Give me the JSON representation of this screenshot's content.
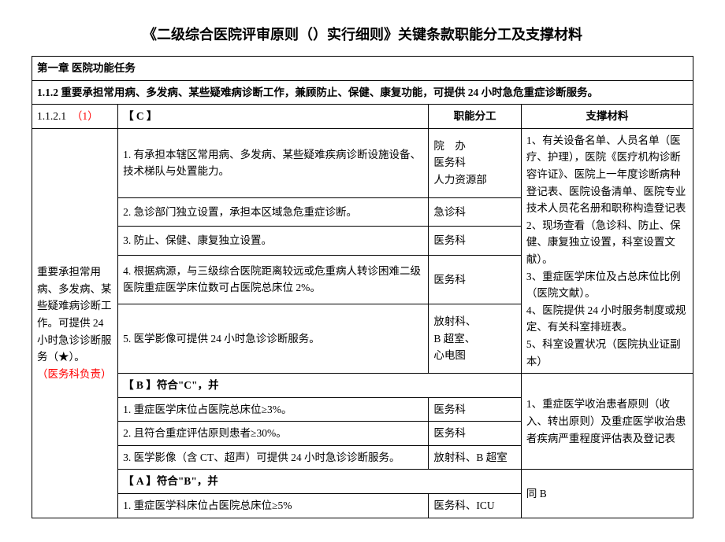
{
  "title": "《二级综合医院评审原则（）实行细则》关键条款职能分工及支撑材料",
  "chapter": "第一章 医院功能任务",
  "section": "1.1.2 重要承担常用病、多发病、某些疑难病诊断工作，兼顾防止、保健、康复功能，可提供 24 小时急危重症诊断服务。",
  "row_header": {
    "num": "1.1.2.1",
    "mark": "（1）",
    "c": "【 C 】",
    "col_div": "职能分工",
    "col_mat": "支撑材料"
  },
  "left_desc_a": "重要承担常用病、多发病、某些疑难病诊断工作。可提供 24 小时急诊诊断服务（★）。",
  "left_desc_b": "（医务科负责）",
  "rows_c": [
    {
      "item": "1. 有承担本辖区常用病、多发病、某些疑难疾病诊断设施设备、技术梯队与处置能力。",
      "div": "院　办\n医务科\n人力资源部"
    },
    {
      "item": "2. 急诊部门独立设置，承担本区域急危重症诊断。",
      "div": "急诊科"
    },
    {
      "item": "3. 防止、保健、康复独立设置。",
      "div": "医务科"
    },
    {
      "item": "4. 根据病源，与三级综合医院距离较远或危重病人转诊困难二级医院重症医学床位数可占医院总床位 2%。",
      "div": "医务科"
    },
    {
      "item": "5. 医学影像可提供 24 小时急诊诊断服务。",
      "div": "放射科、\nB 超室、\n心电图"
    }
  ],
  "materials_c": "1、有关设备名单、人员名单（医疗、护理），医院《医疗机构诊断容许证》、医院上一年度诊断病种登记表、医院设备清单、医院专业技术人员花名册和职称构造登记表\n2、现场查看（急诊科、防止、保健、康复独立设置，科室设置文献）。\n3、重症医学床位及占总床位比例（医院文献）。\n4、医院提供 24 小时服务制度或规定、有关科室排班表。\n5、科室设置状况（医院执业证副本）",
  "row_b_head": "【 B 】符合\"C\"，并",
  "rows_b": [
    {
      "item": "1. 重症医学床位占医院总床位≥3%。",
      "div": "医务科"
    },
    {
      "item": "2. 且符合重症评估原则患者≥30%。",
      "div": "医务科"
    },
    {
      "item": "3. 医学影像（含 CT、超声）可提供 24 小时急诊诊断服务。",
      "div": "放射科、B 超室"
    }
  ],
  "materials_b": "1、重症医学收治患者原则（收入、转出原则）及重症医学收治患者疾病严重程度评估表及登记表",
  "row_a_head": "【 A 】符合\"B\"，并",
  "rows_a": [
    {
      "item": "1. 重症医学科床位占医院总床位≥5%",
      "div": "医务科、ICU"
    }
  ],
  "materials_a": "同 B"
}
